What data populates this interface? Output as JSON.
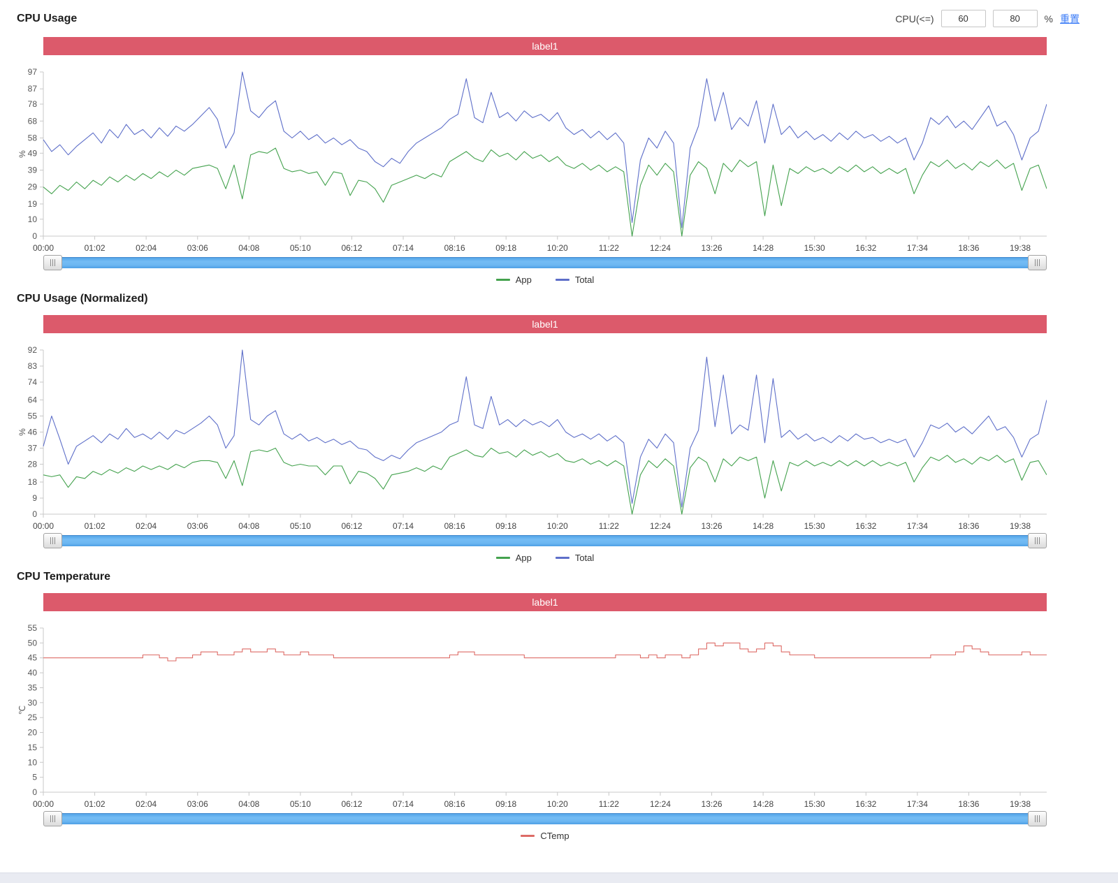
{
  "header": {
    "filter_label": "CPU(<=)",
    "low": "60",
    "high": "80",
    "percent": "%",
    "reset": "重置"
  },
  "colors": {
    "banner_red": "#dc5a6b",
    "app_green": "#44a24e",
    "total_blue": "#5e6fc9",
    "ctemp_red": "#dd6b66",
    "scrollbar_blue": "#5fadf0",
    "link_blue": "#3b7cf7",
    "axis_grey": "#c8c8c8"
  },
  "chart_data": [
    {
      "type": "line",
      "title": "CPU Usage",
      "banner": "label1",
      "ylabel": "%",
      "ylim": [
        0,
        97
      ],
      "yticks": [
        0,
        10,
        19,
        29,
        39,
        49,
        58,
        68,
        78,
        87,
        97
      ],
      "xtick_labels": [
        "00:00",
        "01:02",
        "02:04",
        "03:06",
        "04:08",
        "05:10",
        "06:12",
        "07:14",
        "08:16",
        "09:18",
        "10:20",
        "11:22",
        "12:24",
        "13:26",
        "14:28",
        "15:30",
        "16:32",
        "17:34",
        "18:36",
        "19:38"
      ],
      "xtick_interval_min": 62,
      "x_step_min": 10,
      "xmax_min": 1210,
      "grid": false,
      "legend_position": "bottom",
      "series": [
        {
          "name": "App",
          "color": "#44a24e",
          "step": false,
          "values": [
            29,
            25,
            30,
            27,
            32,
            28,
            33,
            30,
            35,
            32,
            36,
            33,
            37,
            34,
            38,
            35,
            39,
            36,
            40,
            41,
            42,
            40,
            28,
            42,
            22,
            48,
            50,
            49,
            52,
            40,
            38,
            39,
            37,
            38,
            30,
            38,
            37,
            24,
            33,
            32,
            28,
            20,
            30,
            32,
            34,
            36,
            34,
            37,
            35,
            44,
            47,
            50,
            46,
            44,
            51,
            47,
            49,
            45,
            50,
            46,
            48,
            44,
            47,
            42,
            40,
            43,
            39,
            42,
            38,
            41,
            38,
            0,
            30,
            42,
            36,
            43,
            38,
            0,
            36,
            44,
            40,
            25,
            43,
            38,
            45,
            41,
            44,
            12,
            42,
            18,
            40,
            37,
            41,
            38,
            40,
            37,
            41,
            38,
            42,
            38,
            41,
            37,
            40,
            37,
            40,
            25,
            36,
            44,
            41,
            45,
            40,
            43,
            39,
            44,
            41,
            45,
            40,
            43,
            27,
            40,
            42,
            28
          ]
        },
        {
          "name": "Total",
          "color": "#5e6fc9",
          "step": false,
          "values": [
            57,
            50,
            54,
            48,
            53,
            57,
            61,
            55,
            63,
            58,
            66,
            60,
            63,
            58,
            64,
            59,
            65,
            62,
            66,
            71,
            76,
            69,
            52,
            61,
            97,
            74,
            70,
            76,
            80,
            62,
            58,
            62,
            57,
            60,
            55,
            58,
            54,
            57,
            52,
            50,
            44,
            41,
            46,
            43,
            50,
            55,
            58,
            61,
            64,
            69,
            72,
            93,
            70,
            67,
            85,
            70,
            73,
            68,
            74,
            70,
            72,
            68,
            73,
            64,
            60,
            63,
            58,
            62,
            57,
            61,
            55,
            8,
            45,
            58,
            52,
            62,
            55,
            5,
            52,
            65,
            93,
            68,
            85,
            63,
            70,
            65,
            80,
            55,
            78,
            60,
            65,
            58,
            62,
            57,
            60,
            56,
            61,
            57,
            62,
            58,
            60,
            56,
            59,
            55,
            58,
            45,
            55,
            70,
            66,
            71,
            64,
            68,
            63,
            70,
            77,
            65,
            68,
            60,
            45,
            58,
            62,
            78
          ]
        }
      ]
    },
    {
      "type": "line",
      "title": "CPU Usage (Normalized)",
      "banner": "label1",
      "ylabel": "%",
      "ylim": [
        0,
        92
      ],
      "yticks": [
        0,
        9,
        18,
        28,
        37,
        46,
        55,
        64,
        74,
        83,
        92
      ],
      "xtick_labels": [
        "00:00",
        "01:02",
        "02:04",
        "03:06",
        "04:08",
        "05:10",
        "06:12",
        "07:14",
        "08:16",
        "09:18",
        "10:20",
        "11:22",
        "12:24",
        "13:26",
        "14:28",
        "15:30",
        "16:32",
        "17:34",
        "18:36",
        "19:38"
      ],
      "xtick_interval_min": 62,
      "x_step_min": 10,
      "xmax_min": 1210,
      "grid": false,
      "legend_position": "bottom",
      "series": [
        {
          "name": "App",
          "color": "#44a24e",
          "step": false,
          "values": [
            22,
            21,
            22,
            15,
            21,
            20,
            24,
            22,
            25,
            23,
            26,
            24,
            27,
            25,
            27,
            25,
            28,
            26,
            29,
            30,
            30,
            29,
            20,
            30,
            16,
            35,
            36,
            35,
            37,
            29,
            27,
            28,
            27,
            27,
            22,
            27,
            27,
            17,
            24,
            23,
            20,
            14,
            22,
            23,
            24,
            26,
            24,
            27,
            25,
            32,
            34,
            36,
            33,
            32,
            37,
            34,
            35,
            32,
            36,
            33,
            35,
            32,
            34,
            30,
            29,
            31,
            28,
            30,
            27,
            30,
            27,
            0,
            22,
            30,
            26,
            31,
            27,
            0,
            26,
            32,
            29,
            18,
            31,
            27,
            32,
            30,
            32,
            9,
            30,
            13,
            29,
            27,
            30,
            27,
            29,
            27,
            30,
            27,
            30,
            27,
            30,
            27,
            29,
            27,
            29,
            18,
            26,
            32,
            30,
            33,
            29,
            31,
            28,
            32,
            30,
            33,
            29,
            31,
            19,
            29,
            30,
            22
          ]
        },
        {
          "name": "Total",
          "color": "#5e6fc9",
          "step": false,
          "values": [
            38,
            55,
            42,
            28,
            38,
            41,
            44,
            40,
            45,
            42,
            48,
            43,
            45,
            42,
            46,
            42,
            47,
            45,
            48,
            51,
            55,
            50,
            37,
            44,
            92,
            53,
            50,
            55,
            58,
            45,
            42,
            45,
            41,
            43,
            40,
            42,
            39,
            41,
            37,
            36,
            32,
            30,
            33,
            31,
            36,
            40,
            42,
            44,
            46,
            50,
            52,
            77,
            50,
            48,
            66,
            50,
            53,
            49,
            53,
            50,
            52,
            49,
            53,
            46,
            43,
            45,
            42,
            45,
            41,
            44,
            40,
            6,
            32,
            42,
            37,
            45,
            40,
            4,
            37,
            47,
            88,
            49,
            78,
            45,
            50,
            47,
            78,
            40,
            76,
            43,
            47,
            42,
            45,
            41,
            43,
            40,
            44,
            41,
            45,
            42,
            43,
            40,
            42,
            40,
            42,
            32,
            40,
            50,
            48,
            51,
            46,
            49,
            45,
            50,
            55,
            47,
            49,
            43,
            32,
            42,
            45,
            64
          ]
        }
      ]
    },
    {
      "type": "line",
      "title": "CPU Temperature",
      "banner": "label1",
      "ylabel": "℃",
      "ylim": [
        0,
        55
      ],
      "yticks": [
        0,
        5,
        10,
        15,
        20,
        25,
        30,
        35,
        40,
        45,
        50,
        55
      ],
      "xtick_labels": [
        "00:00",
        "01:02",
        "02:04",
        "03:06",
        "04:08",
        "05:10",
        "06:12",
        "07:14",
        "08:16",
        "09:18",
        "10:20",
        "11:22",
        "12:24",
        "13:26",
        "14:28",
        "15:30",
        "16:32",
        "17:34",
        "18:36",
        "19:38"
      ],
      "xtick_interval_min": 62,
      "x_step_min": 10,
      "xmax_min": 1210,
      "grid": false,
      "legend_position": "bottom",
      "series": [
        {
          "name": "CTemp",
          "color": "#dd6b66",
          "step": true,
          "values": [
            45,
            45,
            45,
            45,
            45,
            45,
            45,
            45,
            45,
            45,
            45,
            45,
            46,
            46,
            45,
            44,
            45,
            45,
            46,
            47,
            47,
            46,
            46,
            47,
            48,
            47,
            47,
            48,
            47,
            46,
            46,
            47,
            46,
            46,
            46,
            45,
            45,
            45,
            45,
            45,
            45,
            45,
            45,
            45,
            45,
            45,
            45,
            45,
            45,
            46,
            47,
            47,
            46,
            46,
            46,
            46,
            46,
            46,
            45,
            45,
            45,
            45,
            45,
            45,
            45,
            45,
            45,
            45,
            45,
            46,
            46,
            46,
            45,
            46,
            45,
            46,
            46,
            45,
            46,
            48,
            50,
            49,
            50,
            50,
            48,
            47,
            48,
            50,
            49,
            47,
            46,
            46,
            46,
            45,
            45,
            45,
            45,
            45,
            45,
            45,
            45,
            45,
            45,
            45,
            45,
            45,
            45,
            46,
            46,
            46,
            47,
            49,
            48,
            47,
            46,
            46,
            46,
            46,
            47,
            46,
            46,
            46
          ]
        }
      ]
    }
  ]
}
